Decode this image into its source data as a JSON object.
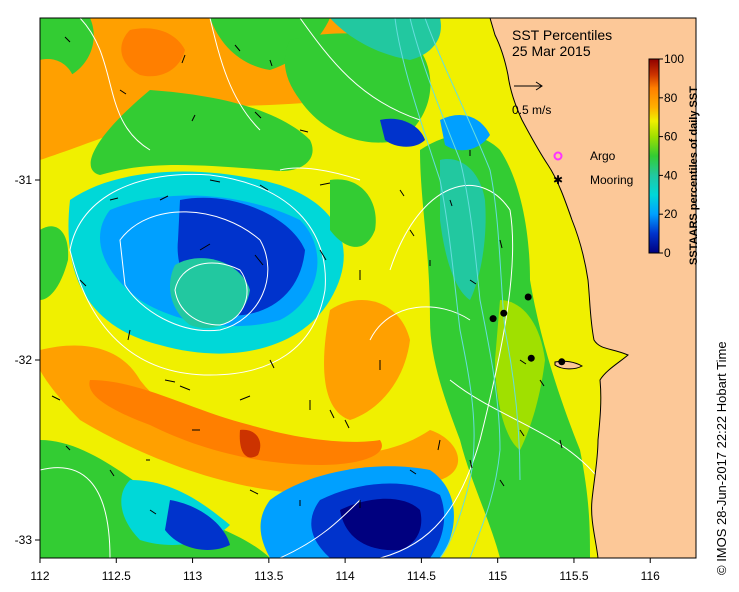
{
  "map": {
    "title": "SST Percentiles",
    "date": "25 Mar 2015",
    "lon_range": [
      112,
      116.3
    ],
    "lat_range": [
      -33.1,
      -30.1
    ],
    "x_ticks": [
      "112",
      "112.5",
      "113",
      "113.5",
      "114",
      "114.5",
      "115",
      "115.5",
      "116"
    ],
    "y_ticks": [
      "-31",
      "-32",
      "-33"
    ],
    "vector_scale_label": "0.5 m/s",
    "legend": {
      "argo_label": "Argo",
      "mooring_label": "Mooring",
      "argo_color": "#ff33ff",
      "mooring_color": "#000000"
    },
    "colorbar": {
      "label": "SSTAARS percentiles of daily SST",
      "ticks": [
        "0",
        "20",
        "40",
        "60",
        "80",
        "100"
      ],
      "colors": [
        "#00007f",
        "#0033cc",
        "#00a0ff",
        "#00d8d8",
        "#22c8a0",
        "#33cc33",
        "#a0e000",
        "#f0f000",
        "#ffb000",
        "#ff7f00",
        "#cc3300",
        "#8f0000"
      ]
    },
    "land_color": "#fcc898",
    "credit": "© IMOS 28-Jun-2017 22:22 Hobart Time",
    "moorings": [
      {
        "lon": 114.97,
        "lat": -31.77
      },
      {
        "lon": 115.04,
        "lat": -31.74
      },
      {
        "lon": 115.2,
        "lat": -31.65
      },
      {
        "lon": 115.22,
        "lat": -31.99
      },
      {
        "lon": 115.42,
        "lat": -32.01
      }
    ]
  }
}
